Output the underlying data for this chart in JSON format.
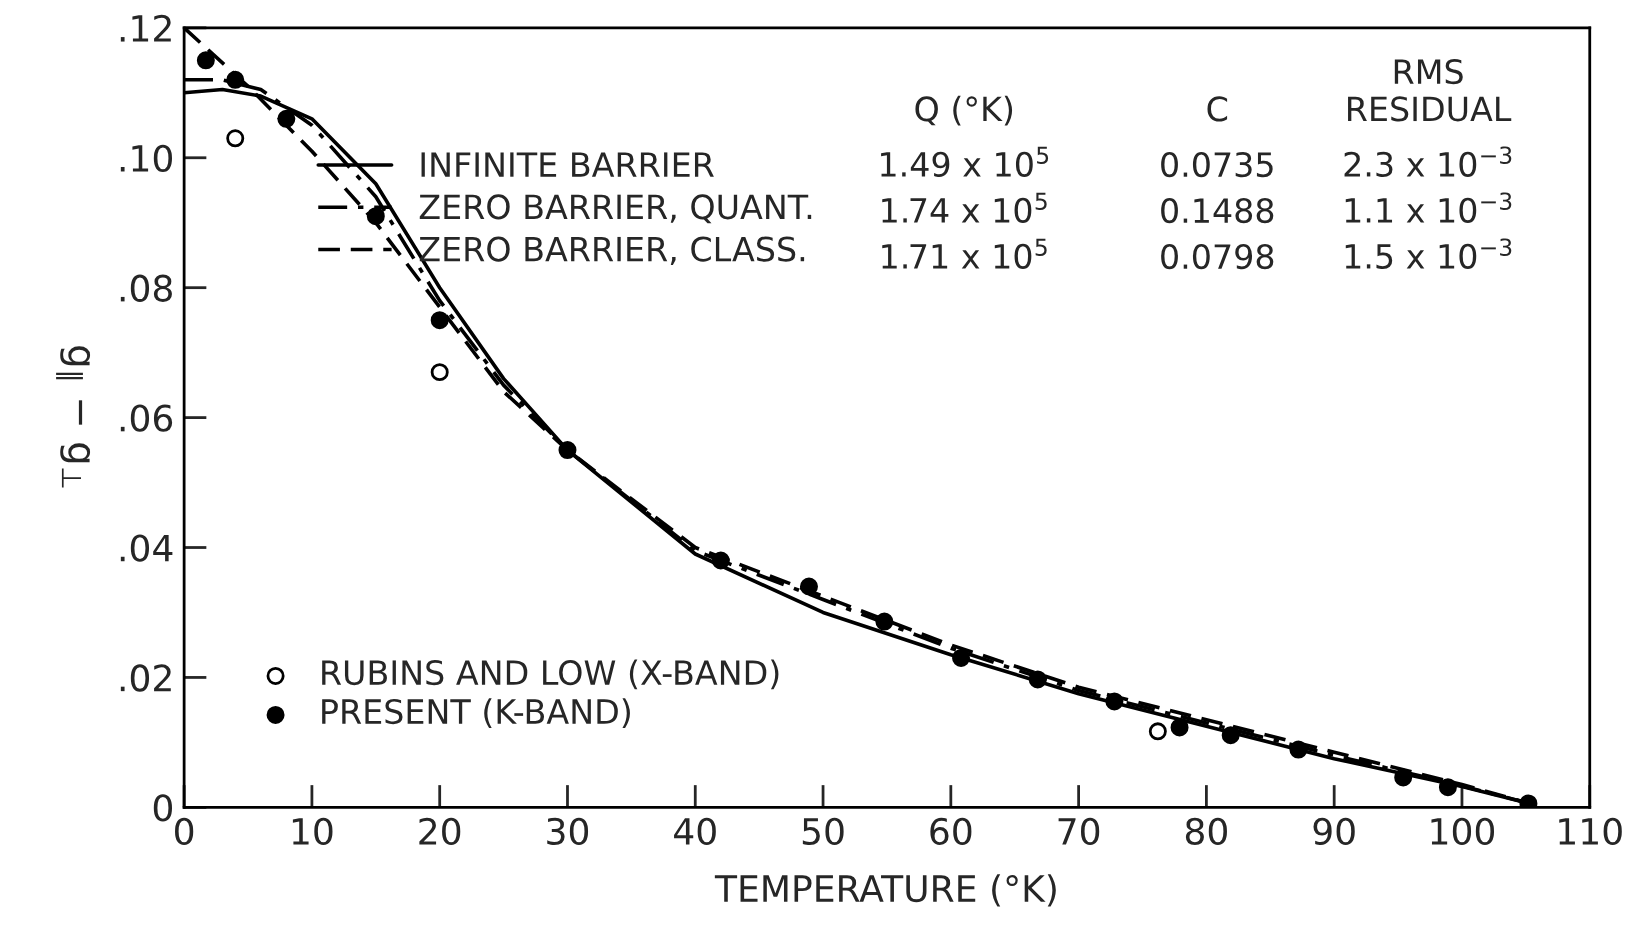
{
  "chart_data": {
    "type": "line",
    "xlabel": "TEMPERATURE (°K)",
    "ylabel": "g$_{∥}$ − g$_{⊥}$",
    "xlim": [
      0,
      110
    ],
    "ylim": [
      0,
      0.12
    ],
    "xticks": [
      0,
      10,
      20,
      30,
      40,
      50,
      60,
      70,
      80,
      90,
      100,
      110
    ],
    "yticks": [
      {
        "value": 0,
        "label": "0"
      },
      {
        "value": 0.02,
        "label": ".02"
      },
      {
        "value": 0.04,
        "label": ".04"
      },
      {
        "value": 0.06,
        "label": ".06"
      },
      {
        "value": 0.08,
        "label": ".08"
      },
      {
        "value": 0.1,
        "label": ".10"
      },
      {
        "value": 0.12,
        "label": ".12"
      }
    ],
    "grid": false,
    "legend": "left",
    "series": [
      {
        "name": "INFINITE BARRIER",
        "line_style": "solid",
        "color": "#000000",
        "x": [
          0,
          3,
          6,
          10,
          15,
          20,
          25,
          30,
          40,
          50,
          60,
          70,
          80,
          90,
          100,
          105.5
        ],
        "values": [
          0.11,
          0.1105,
          0.1095,
          0.106,
          0.096,
          0.08,
          0.066,
          0.055,
          0.039,
          0.03,
          0.0235,
          0.0175,
          0.0125,
          0.0075,
          0.0032,
          0.0005
        ]
      },
      {
        "name": "ZERO BARRIER, QUANT.",
        "line_style": "dashdot",
        "color": "#000000",
        "x": [
          0,
          3,
          6,
          10,
          15,
          20,
          25,
          30,
          40,
          50,
          60,
          70,
          80,
          90,
          100,
          105.5
        ],
        "values": [
          0.112,
          0.112,
          0.1105,
          0.105,
          0.094,
          0.078,
          0.065,
          0.055,
          0.0395,
          0.032,
          0.0245,
          0.018,
          0.013,
          0.008,
          0.0033,
          0.0005
        ]
      },
      {
        "name": "ZERO BARRIER, CLASS.",
        "line_style": "dashed",
        "color": "#000000",
        "x": [
          0,
          5,
          10,
          15,
          20,
          25,
          30,
          40,
          50,
          60,
          70,
          80,
          90,
          100,
          105.5
        ],
        "values": [
          0.12,
          0.111,
          0.101,
          0.09,
          0.077,
          0.064,
          0.055,
          0.04,
          0.0325,
          0.025,
          0.0185,
          0.0135,
          0.0085,
          0.0035,
          0.0005
        ]
      },
      {
        "name": "RUBINS AND LOW (X-BAND)",
        "type": "scatter",
        "marker": "circle",
        "color": "#ffffff",
        "x": [
          4,
          20,
          76.2
        ],
        "values": [
          0.103,
          0.067,
          0.0117
        ]
      },
      {
        "name": "PRESENT (K-BAND)",
        "type": "scatter",
        "marker": "circle",
        "color": "#000000",
        "x": [
          1.7,
          4,
          8,
          15,
          20,
          30,
          42,
          48.9,
          54.8,
          60.8,
          66.8,
          72.8,
          77.9,
          81.9,
          87.2,
          95.4,
          98.9,
          105.2
        ],
        "values": [
          0.115,
          0.112,
          0.106,
          0.091,
          0.075,
          0.055,
          0.038,
          0.034,
          0.0286,
          0.023,
          0.0197,
          0.0163,
          0.0123,
          0.0111,
          0.0089,
          0.0046,
          0.0031,
          0.0006
        ]
      }
    ],
    "annotations": [
      "Q (°K)",
      "C",
      "RMS\nRESIDUAL",
      "1.49 x 10$^{5}$",
      "0.0735",
      "2.3 x 10$^{−3}$",
      "1.74 x 10$^{5}$",
      "0.1488",
      "1.1 x 10$^{−3}$",
      "1.71 x 10$^{5}$",
      "0.0798",
      "1.5 x 10$^{−3}$"
    ]
  }
}
